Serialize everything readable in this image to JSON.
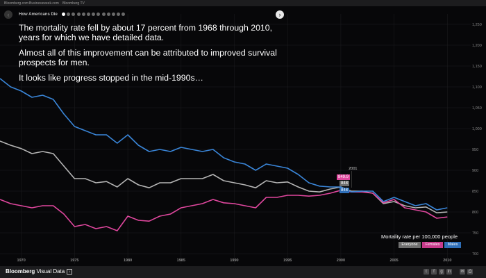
{
  "topbar": {
    "links": [
      "Bloomberg.com",
      "Businessweek.com",
      "Bloomberg TV"
    ]
  },
  "nav": {
    "story_title": "How Americans Die",
    "slide_count": 13,
    "active_slide": 0
  },
  "narrative": [
    "The mortality rate fell by about 17 percent from 1968 through 2010, years for which we have detailed data.",
    "Almost all of this improvement can be attributed to improved survival prospects for men.",
    "It looks like progress stopped in the mid-1990s…"
  ],
  "colors": {
    "everyone": "#b5b5b5",
    "females": "#e0479e",
    "males": "#3a86d9",
    "background": "#070709"
  },
  "legend": {
    "title": "Mortality rate per 100,000 people",
    "items": [
      {
        "label": "Everyone",
        "color": "#b5b5b5"
      },
      {
        "label": "Females",
        "color": "#e0479e"
      },
      {
        "label": "Males",
        "color": "#3a86d9"
      }
    ]
  },
  "callout": {
    "year_label": "2001",
    "values": [
      "849.9",
      "848",
      "848"
    ]
  },
  "footer": {
    "brand_bold": "Bloomberg",
    "brand_rest": " Visual Data",
    "share_icons": [
      "twitter-icon",
      "facebook-icon",
      "google-plus-icon",
      "linkedin-icon",
      "email-icon",
      "print-icon"
    ]
  },
  "chart_data": {
    "type": "line",
    "x": [
      1968,
      1969,
      1970,
      1971,
      1972,
      1973,
      1974,
      1975,
      1976,
      1977,
      1978,
      1979,
      1980,
      1981,
      1982,
      1983,
      1984,
      1985,
      1986,
      1987,
      1988,
      1989,
      1990,
      1991,
      1992,
      1993,
      1994,
      1995,
      1996,
      1997,
      1998,
      1999,
      2000,
      2001,
      2002,
      2003,
      2004,
      2005,
      2006,
      2007,
      2008,
      2009,
      2010
    ],
    "series": [
      {
        "name": "Everyone",
        "values": [
          970,
          960,
          952,
          940,
          945,
          940,
          910,
          880,
          880,
          870,
          873,
          860,
          880,
          865,
          858,
          870,
          870,
          880,
          880,
          880,
          890,
          875,
          870,
          865,
          858,
          875,
          870,
          872,
          860,
          850,
          848,
          855,
          860,
          849.9,
          850,
          845,
          820,
          825,
          815,
          810,
          812,
          798,
          800
        ]
      },
      {
        "name": "Females",
        "values": [
          830,
          820,
          815,
          810,
          815,
          815,
          795,
          765,
          770,
          760,
          765,
          755,
          790,
          780,
          778,
          790,
          795,
          810,
          815,
          820,
          830,
          822,
          820,
          815,
          810,
          835,
          835,
          840,
          840,
          838,
          840,
          845,
          852,
          848,
          848,
          845,
          822,
          830,
          810,
          805,
          800,
          785,
          788
        ]
      },
      {
        "name": "Males",
        "values": [
          1120,
          1100,
          1090,
          1075,
          1080,
          1070,
          1035,
          1005,
          995,
          985,
          985,
          965,
          985,
          960,
          945,
          950,
          945,
          955,
          950,
          945,
          950,
          930,
          920,
          915,
          900,
          915,
          910,
          905,
          890,
          870,
          862,
          860,
          860,
          848,
          850,
          850,
          825,
          835,
          825,
          815,
          820,
          805,
          810
        ]
      }
    ],
    "y_ticks": [
      700,
      750,
      800,
      850,
      900,
      950,
      1000,
      1050,
      1100,
      1150,
      1200,
      1250
    ],
    "x_ticks": [
      1970,
      1975,
      1980,
      1985,
      1990,
      1995,
      2000,
      2005,
      2010
    ],
    "ylim": [
      675,
      1275
    ],
    "xlim": [
      1968,
      2012
    ],
    "grid": true,
    "legend_placement": "bottom-right"
  }
}
